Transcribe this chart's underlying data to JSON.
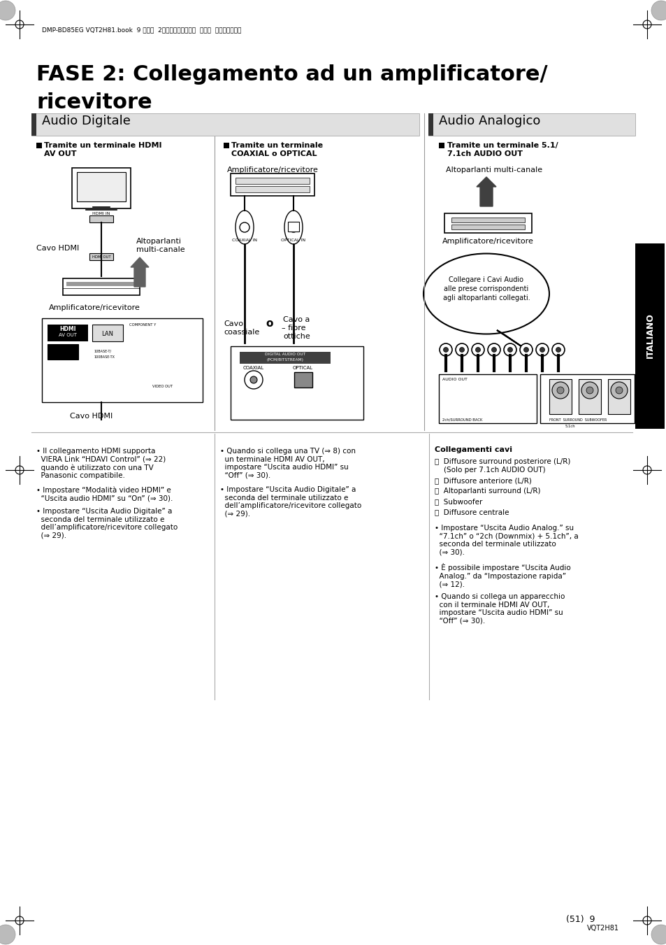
{
  "bg_color": "#ffffff",
  "page_width": 9.54,
  "page_height": 13.51,
  "header_text": "DMP-BD85EG VQT2H81.book  9 ページ  2０１０年１月２０日  水曜日  午後８時５５分",
  "main_title_line1": "FASE 2: Collegamento ad un amplificatore/",
  "main_title_line2": "ricevitore",
  "section_left_title": "Audio Digitale",
  "section_right_title": "Audio Analogico",
  "col1_header1": "Tramite un terminale HDMI",
  "col1_header2": "AV OUT",
  "col2_header1": "Tramite un terminale",
  "col2_header2": "COAXIAL o OPTICAL",
  "col3_header1": "Tramite un terminale 5.1/",
  "col3_header2": "7.1ch AUDIO OUT",
  "col1_label2": "Cavo HDMI",
  "col1_label4": "Amplificatore/ricevitore",
  "col1_label5": "Cavo HDMI",
  "col2_label1": "Amplificatore/ricevitore",
  "col2_label2": "Cavo\ncoassiale",
  "col2_label3": "o",
  "col2_label4": "Cavo a\n– fibre\nottiche",
  "col3_label1": "Altoparlanti multi-canale",
  "col3_label2": "Amplificatore/ricevitore",
  "col3_label3": "Collegare i Cavi Audio\nalle prese corrispondenti\nagli altoparlanti collegati.",
  "col1_bullets": [
    "• Il collegamento HDMI supporta\n  VIERA Link “HDAVI Control” (⇒ 22)\n  quando è utilizzato con una TV\n  Panasonic compatibile.",
    "• Impostare “Modalità video HDMI” e\n  “Uscita audio HDMI” su “On” (⇒ 30).",
    "• Impostare “Uscita Audio Digitale” a\n  seconda del terminale utilizzato e\n  dell’amplificatore/ricevitore collegato\n  (⇒ 29)."
  ],
  "col2_bullets": [
    "• Quando si collega una TV (⇒ 8) con\n  un terminale HDMI AV OUT,\n  impostare “Uscita audio HDMI” su\n  “Off” (⇒ 30).",
    "• Impostare “Uscita Audio Digitale” a\n  seconda del terminale utilizzato e\n  dell’amplificatore/ricevitore collegato\n  (⇒ 29)."
  ],
  "col3_header_bold": "Collegamenti cavi",
  "col3_items": [
    "ⓐ  Diffusore surround posteriore (L/R)\n    (Solo per 7.1ch AUDIO OUT)",
    "ⓑ  Diffusore anteriore (L/R)",
    "ⓒ  Altoparlanti surround (L/R)",
    "ⓓ  Subwoofer",
    "ⓔ  Diffusore centrale"
  ],
  "col3_bullets": [
    "• Impostare “Uscita Audio Analog.” su\n  “7.1ch” o “2ch (Downmix) + 5.1ch”, a\n  seconda del terminale utilizzato\n  (⇒ 30).",
    "• È possibile impostare “Uscita Audio\n  Analog.” da “Impostazione rapida”\n  (⇒ 12).",
    "• Quando si collega un apparecchio\n  con il terminale HDMI AV OUT,\n  impostare “Uscita audio HDMI” su\n  “Off” (⇒ 30)."
  ],
  "page_num": "(51)  9",
  "page_code": "VQT2H81",
  "italiano_text": "ITALIANO"
}
